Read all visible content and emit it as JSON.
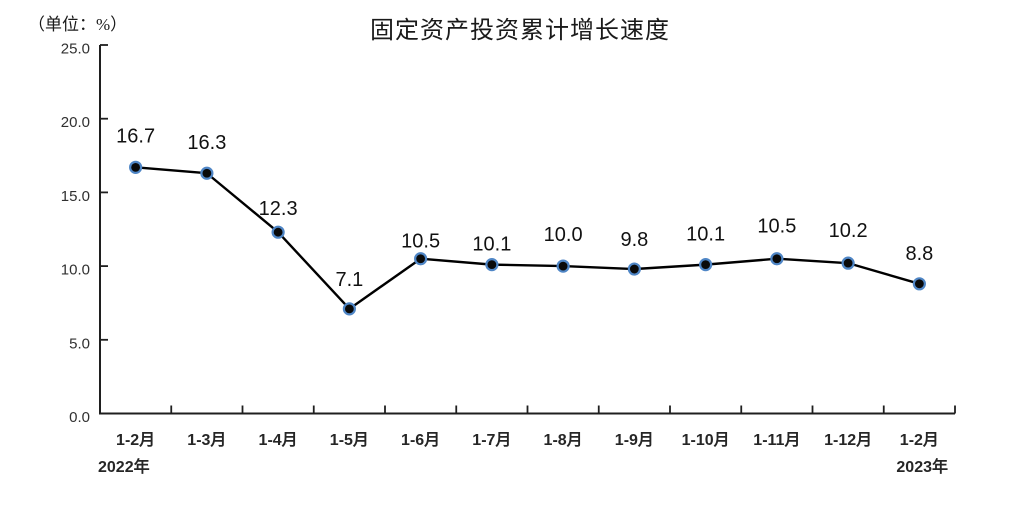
{
  "page": {
    "background": "#ffffff"
  },
  "chart_data": {
    "type": "line",
    "title": "固定资产投资累计增长速度",
    "unit_label": "（单位：%）",
    "categories": [
      "1-2月",
      "1-3月",
      "1-4月",
      "1-5月",
      "1-6月",
      "1-7月",
      "1-8月",
      "1-9月",
      "1-10月",
      "1-11月",
      "1-12月",
      "1-2月"
    ],
    "values": [
      16.7,
      16.3,
      12.3,
      7.1,
      10.5,
      10.1,
      10.0,
      9.8,
      10.1,
      10.5,
      10.2,
      8.8
    ],
    "data_labels": [
      "16.7",
      "16.3",
      "12.3",
      "7.1",
      "10.5",
      "10.1",
      "10.0",
      "9.8",
      "10.1",
      "10.5",
      "10.2",
      "8.8"
    ],
    "label_dy": [
      -25,
      -24,
      -17,
      -23,
      -11,
      -14,
      -25,
      -23,
      -24,
      -26,
      -26,
      -24
    ],
    "x_axis_secondary": {
      "first": "2022年",
      "last": "2023年"
    },
    "y_tick_labels": [
      "0.0",
      "5.0",
      "10.0",
      "15.0",
      "20.0",
      "25.0"
    ],
    "ylim": [
      0,
      25
    ],
    "grid": "off",
    "legend": "none",
    "colors": {
      "line": "#000000",
      "marker_fill": "#0a0a0a",
      "marker_ring": "#4f86c6",
      "axis": "#1f1f1f",
      "tick": "#1f1f1f"
    }
  }
}
